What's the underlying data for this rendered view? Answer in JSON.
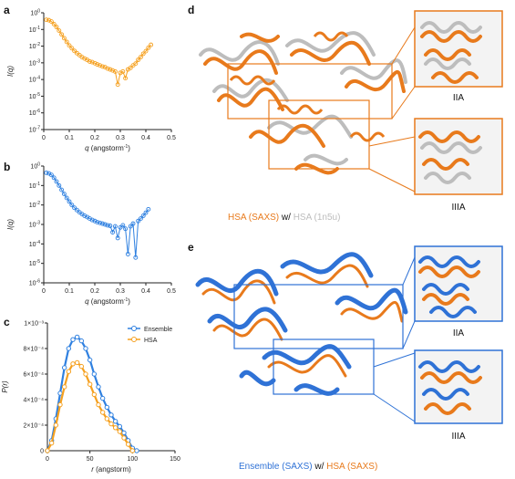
{
  "panels": {
    "a": {
      "label": "a",
      "chart_data": {
        "type": "scatter",
        "x_label_var": "q",
        "x_label_unit": "(angstorm",
        "x_label_sup": "-1",
        "x_label_close": ")",
        "y_label": "I(q)",
        "y_scale": "log",
        "xlim": [
          0,
          0.5
        ],
        "ylim": [
          1e-07,
          1
        ],
        "x_ticks": [
          "0",
          "0.1",
          "0.2",
          "0.3",
          "0.4",
          "0.5"
        ],
        "y_ticks": [
          {
            "base": "10",
            "exp": "0"
          },
          {
            "base": "10",
            "exp": "-1"
          },
          {
            "base": "10",
            "exp": "-2"
          },
          {
            "base": "10",
            "exp": "-3"
          },
          {
            "base": "10",
            "exp": "-4"
          },
          {
            "base": "10",
            "exp": "-5"
          },
          {
            "base": "10",
            "exp": "-6"
          },
          {
            "base": "10",
            "exp": "-7"
          }
        ],
        "color": "#F5A01F",
        "x": [
          0.01,
          0.02,
          0.03,
          0.04,
          0.05,
          0.06,
          0.07,
          0.08,
          0.09,
          0.1,
          0.11,
          0.12,
          0.13,
          0.14,
          0.15,
          0.16,
          0.17,
          0.18,
          0.19,
          0.2,
          0.21,
          0.22,
          0.23,
          0.24,
          0.25,
          0.26,
          0.27,
          0.28,
          0.29,
          0.3,
          0.31,
          0.32,
          0.33,
          0.34,
          0.35,
          0.36,
          0.37,
          0.38,
          0.39,
          0.4,
          0.41,
          0.42
        ],
        "y": [
          0.38,
          0.36,
          0.3,
          0.21,
          0.14,
          0.085,
          0.05,
          0.03,
          0.018,
          0.011,
          0.0075,
          0.0052,
          0.0038,
          0.0029,
          0.0022,
          0.0018,
          0.0015,
          0.0012,
          0.0011,
          0.00095,
          0.0008,
          0.0007,
          0.0006,
          0.00055,
          0.00045,
          0.0004,
          0.00035,
          0.0003,
          5e-05,
          0.00025,
          0.0003,
          0.00012,
          0.0004,
          0.0005,
          0.0007,
          0.0009,
          0.0015,
          0.0022,
          0.0035,
          0.005,
          0.008,
          0.012
        ]
      }
    },
    "b": {
      "label": "b",
      "chart_data": {
        "type": "scatter",
        "x_label_var": "q",
        "x_label_unit": "(angstorm",
        "x_label_sup": "-1",
        "x_label_close": ")",
        "y_label": "I(q)",
        "y_scale": "log",
        "xlim": [
          0,
          0.5
        ],
        "ylim": [
          1e-06,
          1
        ],
        "x_ticks": [
          "0",
          "0.1",
          "0.2",
          "0.3",
          "0.4",
          "0.5"
        ],
        "y_ticks": [
          {
            "base": "10",
            "exp": "0"
          },
          {
            "base": "10",
            "exp": "-1"
          },
          {
            "base": "10",
            "exp": "-2"
          },
          {
            "base": "10",
            "exp": "-3"
          },
          {
            "base": "10",
            "exp": "-4"
          },
          {
            "base": "10",
            "exp": "-5"
          },
          {
            "base": "10",
            "exp": "-6"
          }
        ],
        "color": "#2F80E0",
        "x": [
          0.01,
          0.02,
          0.03,
          0.04,
          0.05,
          0.06,
          0.07,
          0.08,
          0.09,
          0.1,
          0.11,
          0.12,
          0.13,
          0.14,
          0.15,
          0.16,
          0.17,
          0.18,
          0.19,
          0.2,
          0.21,
          0.22,
          0.23,
          0.24,
          0.25,
          0.26,
          0.27,
          0.28,
          0.29,
          0.3,
          0.31,
          0.32,
          0.33,
          0.34,
          0.35,
          0.36,
          0.37,
          0.38,
          0.39,
          0.4,
          0.41
        ],
        "y": [
          0.45,
          0.42,
          0.35,
          0.25,
          0.16,
          0.1,
          0.06,
          0.037,
          0.023,
          0.015,
          0.01,
          0.0072,
          0.0055,
          0.0042,
          0.0034,
          0.0028,
          0.0024,
          0.002,
          0.0017,
          0.0015,
          0.0013,
          0.0012,
          0.0011,
          0.001,
          0.0009,
          0.00085,
          0.0004,
          0.0008,
          0.0002,
          0.0007,
          0.0009,
          0.0006,
          3e-05,
          0.0008,
          0.0011,
          2e-05,
          0.0015,
          0.002,
          0.0028,
          0.004,
          0.006
        ]
      }
    },
    "c": {
      "label": "c",
      "chart_data": {
        "type": "line",
        "x_label_var": "r",
        "x_label_unit": "(angstorm)",
        "y_label": "P(r)",
        "xlim": [
          0,
          150
        ],
        "ylim": [
          0,
          0.001
        ],
        "x_ticks": [
          "0",
          "50",
          "100",
          "150"
        ],
        "y_ticks": [
          "0",
          "2×10⁻⁴",
          "4×10⁻⁴",
          "6×10⁻⁴",
          "8×10⁻⁴",
          "1×10⁻³"
        ],
        "legend_position": "top-right",
        "series": [
          {
            "name": "Ensemble",
            "color": "#2F80E0",
            "x": [
              0,
              5,
              10,
              15,
              20,
              25,
              30,
              35,
              40,
              45,
              50,
              55,
              60,
              65,
              70,
              75,
              80,
              85,
              90,
              95,
              100,
              105
            ],
            "y": [
              0,
              8e-05,
              0.00025,
              0.00045,
              0.00065,
              0.0008,
              0.00087,
              0.00089,
              0.00086,
              0.0008,
              0.00071,
              0.0006,
              0.0005,
              0.00041,
              0.00034,
              0.00028,
              0.00023,
              0.00019,
              0.00014,
              8e-05,
              2e-05,
              0
            ]
          },
          {
            "name": "HSA",
            "color": "#F5A01F",
            "x": [
              0,
              5,
              10,
              15,
              20,
              25,
              30,
              35,
              40,
              45,
              50,
              55,
              60,
              65,
              70,
              75,
              80,
              85,
              90,
              95,
              100
            ],
            "y": [
              0,
              6e-05,
              0.0002,
              0.00036,
              0.0005,
              0.00062,
              0.00068,
              0.00069,
              0.00066,
              0.0006,
              0.00052,
              0.00044,
              0.00036,
              0.0003,
              0.00025,
              0.00021,
              0.00018,
              0.00015,
              0.0001,
              5e-05,
              0
            ]
          }
        ]
      }
    },
    "d": {
      "label": "d",
      "inset_top": "IIA",
      "inset_bottom": "IIIA",
      "caption_first": "HSA (SAXS)",
      "caption_mid": " w/ ",
      "caption_second": "HSA (1n5u)",
      "color_first": "#E87A1C",
      "color_second": "#BDBDBD"
    },
    "e": {
      "label": "e",
      "inset_top": "IIA",
      "inset_bottom": "IIIA",
      "caption_first": "Ensemble (SAXS)",
      "caption_mid": " w/ ",
      "caption_second": "HSA (SAXS)",
      "color_first": "#2F72D6",
      "color_second": "#E87A1C"
    }
  }
}
